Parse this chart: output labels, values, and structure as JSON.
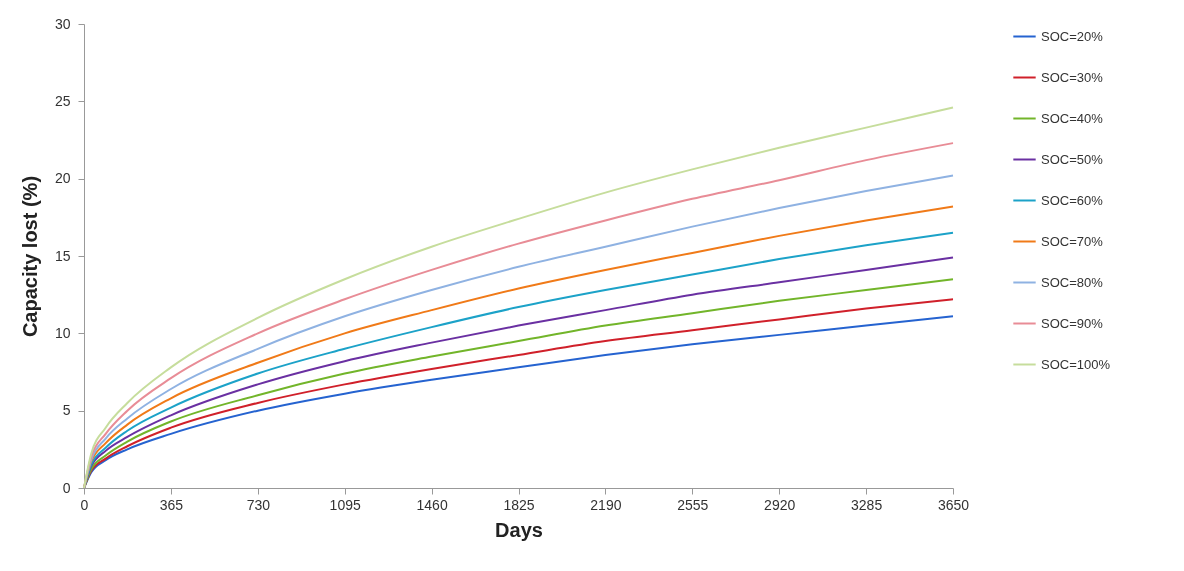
{
  "chart_data": {
    "type": "line",
    "xlabel": "Days",
    "ylabel": "Capacity lost (%)",
    "x": [
      0,
      30,
      91,
      182,
      365,
      730,
      1095,
      1460,
      1825,
      2190,
      2555,
      2920,
      3285,
      3650
    ],
    "xlim": [
      0,
      3650
    ],
    "xticks": [
      0,
      365,
      730,
      1095,
      1460,
      1825,
      2190,
      2555,
      2920,
      3285,
      3650
    ],
    "ylim": [
      0,
      30
    ],
    "yticks": [
      0,
      5,
      10,
      15,
      20,
      25,
      30
    ],
    "grid": false,
    "legend": "right",
    "marker": "none",
    "line_style": "solid",
    "series": [
      {
        "name": "SOC=20%",
        "color": "#2563d0",
        "values": [
          0,
          1.0,
          1.8,
          2.5,
          3.5,
          5.0,
          6.1,
          7.0,
          7.8,
          8.6,
          9.3,
          9.9,
          10.5,
          11.1
        ]
      },
      {
        "name": "SOC=30%",
        "color": "#d0202a",
        "values": [
          0,
          1.1,
          1.9,
          2.7,
          3.9,
          5.5,
          6.7,
          7.7,
          8.6,
          9.5,
          10.2,
          10.9,
          11.6,
          12.2
        ]
      },
      {
        "name": "SOC=40%",
        "color": "#72b52a",
        "values": [
          0,
          1.2,
          2.1,
          3.0,
          4.3,
          6.0,
          7.4,
          8.5,
          9.5,
          10.5,
          11.3,
          12.1,
          12.8,
          13.5
        ]
      },
      {
        "name": "SOC=50%",
        "color": "#6a30a2",
        "values": [
          0,
          1.4,
          2.4,
          3.3,
          4.7,
          6.7,
          8.2,
          9.4,
          10.5,
          11.5,
          12.5,
          13.3,
          14.1,
          14.9
        ]
      },
      {
        "name": "SOC=60%",
        "color": "#1ca2c8",
        "values": [
          0,
          1.5,
          2.6,
          3.7,
          5.2,
          7.4,
          9.0,
          10.4,
          11.7,
          12.8,
          13.8,
          14.8,
          15.7,
          16.5
        ]
      },
      {
        "name": "SOC=70%",
        "color": "#f07a18",
        "values": [
          0,
          1.7,
          2.9,
          4.1,
          5.8,
          8.1,
          10.0,
          11.5,
          12.9,
          14.1,
          15.2,
          16.3,
          17.3,
          18.2
        ]
      },
      {
        "name": "SOC=80%",
        "color": "#8fb2e2",
        "values": [
          0,
          1.8,
          3.2,
          4.5,
          6.4,
          9.0,
          11.1,
          12.8,
          14.3,
          15.6,
          16.9,
          18.1,
          19.2,
          20.2
        ]
      },
      {
        "name": "SOC=90%",
        "color": "#e88c96",
        "values": [
          0,
          2.0,
          3.5,
          5.0,
          7.1,
          10.0,
          12.2,
          14.1,
          15.8,
          17.3,
          18.7,
          19.9,
          21.2,
          22.3
        ]
      },
      {
        "name": "SOC=100%",
        "color": "#c6dd9c",
        "values": [
          0,
          2.2,
          3.9,
          5.5,
          7.8,
          11.0,
          13.5,
          15.6,
          17.4,
          19.1,
          20.6,
          22.0,
          23.3,
          24.6
        ]
      }
    ]
  }
}
